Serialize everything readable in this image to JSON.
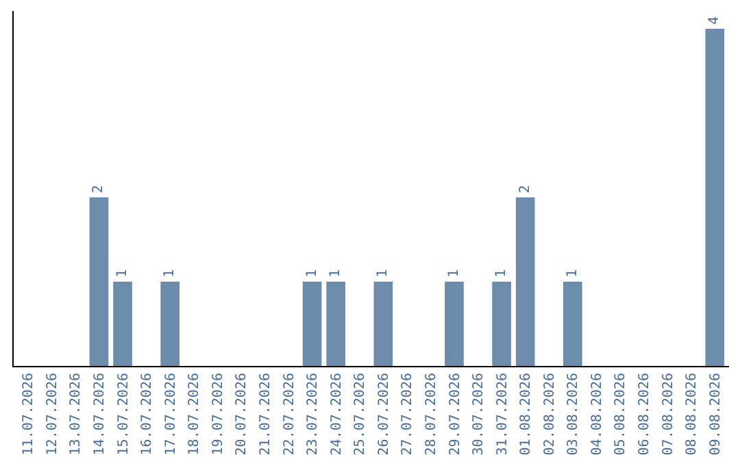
{
  "chart_data": {
    "type": "bar",
    "categories": [
      "11.07.2026",
      "12.07.2026",
      "13.07.2026",
      "14.07.2026",
      "15.07.2026",
      "16.07.2026",
      "17.07.2026",
      "18.07.2026",
      "19.07.2026",
      "20.07.2026",
      "21.07.2026",
      "22.07.2026",
      "23.07.2026",
      "24.07.2026",
      "25.07.2026",
      "26.07.2026",
      "27.07.2026",
      "28.07.2026",
      "29.07.2026",
      "30.07.2026",
      "31.07.2026",
      "01.08.2026",
      "02.08.2026",
      "03.08.2026",
      "04.08.2026",
      "05.08.2026",
      "06.08.2026",
      "07.08.2026",
      "08.08.2026",
      "09.08.2026"
    ],
    "values": [
      0,
      0,
      0,
      2,
      1,
      0,
      1,
      0,
      0,
      0,
      0,
      0,
      1,
      1,
      0,
      1,
      0,
      0,
      1,
      0,
      1,
      2,
      0,
      1,
      0,
      0,
      0,
      0,
      0,
      4
    ],
    "value_labels": [
      null,
      null,
      null,
      "2",
      "1",
      null,
      "1",
      null,
      null,
      null,
      null,
      null,
      "1",
      "1",
      null,
      "1",
      null,
      null,
      "1",
      null,
      "1",
      "2",
      null,
      "1",
      null,
      null,
      null,
      null,
      null,
      "4"
    ],
    "color": "#6d8cab",
    "tick_labels": "x"
  }
}
